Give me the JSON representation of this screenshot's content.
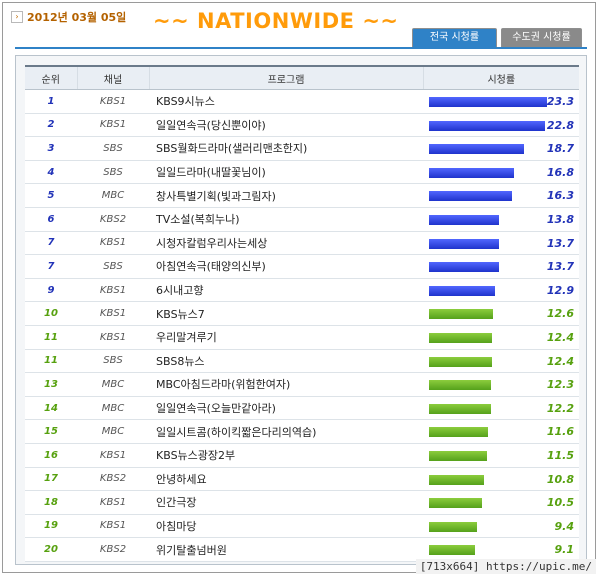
{
  "header": {
    "date": "2012년 03월 05일",
    "title": "~~ NATIONWIDE ~~",
    "tabs": [
      {
        "label": "전국 시청률",
        "active": true
      },
      {
        "label": "수도권 시청률",
        "active": false
      }
    ]
  },
  "table": {
    "columns": [
      "순위",
      "채널",
      "프로그램",
      "시청률"
    ],
    "max_value": 25,
    "rows": [
      {
        "rank": "1",
        "channel": "KBS1",
        "program": "KBS9시뉴스",
        "rating": "23.3",
        "value": 23.3,
        "color": "blue"
      },
      {
        "rank": "2",
        "channel": "KBS1",
        "program": "일일연속극(당신뿐이야)",
        "rating": "22.8",
        "value": 22.8,
        "color": "blue"
      },
      {
        "rank": "3",
        "channel": "SBS",
        "program": "SBS월화드라마(샐러리맨초한지)",
        "rating": "18.7",
        "value": 18.7,
        "color": "blue"
      },
      {
        "rank": "4",
        "channel": "SBS",
        "program": "일일드라마(내딸꽃님이)",
        "rating": "16.8",
        "value": 16.8,
        "color": "blue"
      },
      {
        "rank": "5",
        "channel": "MBC",
        "program": "창사특별기획(빛과그림자)",
        "rating": "16.3",
        "value": 16.3,
        "color": "blue"
      },
      {
        "rank": "6",
        "channel": "KBS2",
        "program": "TV소설(복희누나)",
        "rating": "13.8",
        "value": 13.8,
        "color": "blue"
      },
      {
        "rank": "7",
        "channel": "KBS1",
        "program": "시청자칼럼우리사는세상",
        "rating": "13.7",
        "value": 13.7,
        "color": "blue"
      },
      {
        "rank": "7",
        "channel": "SBS",
        "program": "아침연속극(태양의신부)",
        "rating": "13.7",
        "value": 13.7,
        "color": "blue"
      },
      {
        "rank": "9",
        "channel": "KBS1",
        "program": "6시내고향",
        "rating": "12.9",
        "value": 12.9,
        "color": "blue"
      },
      {
        "rank": "10",
        "channel": "KBS1",
        "program": "KBS뉴스7",
        "rating": "12.6",
        "value": 12.6,
        "color": "green"
      },
      {
        "rank": "11",
        "channel": "KBS1",
        "program": "우리말겨루기",
        "rating": "12.4",
        "value": 12.4,
        "color": "green"
      },
      {
        "rank": "11",
        "channel": "SBS",
        "program": "SBS8뉴스",
        "rating": "12.4",
        "value": 12.4,
        "color": "green"
      },
      {
        "rank": "13",
        "channel": "MBC",
        "program": "MBC아침드라마(위험한여자)",
        "rating": "12.3",
        "value": 12.3,
        "color": "green"
      },
      {
        "rank": "14",
        "channel": "MBC",
        "program": "일일연속극(오늘만같아라)",
        "rating": "12.2",
        "value": 12.2,
        "color": "green"
      },
      {
        "rank": "15",
        "channel": "MBC",
        "program": "일일시트콤(하이킥짧은다리의역습)",
        "rating": "11.6",
        "value": 11.6,
        "color": "green"
      },
      {
        "rank": "16",
        "channel": "KBS1",
        "program": "KBS뉴스광장2부",
        "rating": "11.5",
        "value": 11.5,
        "color": "green"
      },
      {
        "rank": "17",
        "channel": "KBS2",
        "program": "안녕하세요",
        "rating": "10.8",
        "value": 10.8,
        "color": "green"
      },
      {
        "rank": "18",
        "channel": "KBS1",
        "program": "인간극장",
        "rating": "10.5",
        "value": 10.5,
        "color": "green"
      },
      {
        "rank": "19",
        "channel": "KBS1",
        "program": "아침마당",
        "rating": "9.4",
        "value": 9.4,
        "color": "green"
      },
      {
        "rank": "20",
        "channel": "KBS2",
        "program": "위기탈출넘버원",
        "rating": "9.1",
        "value": 9.1,
        "color": "green"
      }
    ]
  },
  "watermark": "[713x664] https://upic.me/"
}
